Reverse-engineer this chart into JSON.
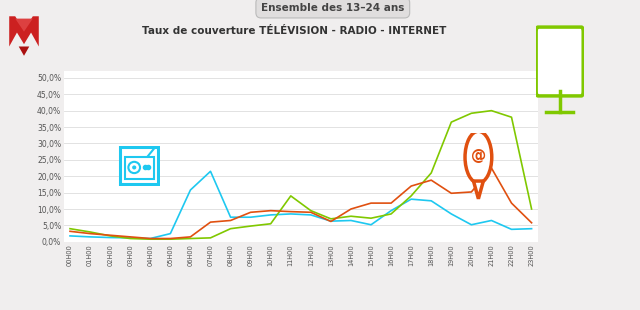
{
  "title": "Taux de couverture TÉLÉVISION - RADIO - INTERNET",
  "subtitle": "Ensemble des 13–24 ans",
  "background_color": "#f0eeee",
  "plot_bg_color": "#ffffff",
  "ylim": [
    0,
    0.52
  ],
  "yticks": [
    0.0,
    0.05,
    0.1,
    0.15,
    0.2,
    0.25,
    0.3,
    0.35,
    0.4,
    0.45,
    0.5
  ],
  "ytick_labels": [
    "0,0%",
    "5,0%",
    "10,0%",
    "15,0%",
    "20,0%",
    "25,0%",
    "30,0%",
    "35,0%",
    "40,0%",
    "45,0%",
    "50,0%"
  ],
  "xtick_labels": [
    "00H00",
    "01H00",
    "02H00",
    "03H00",
    "04H00",
    "05H00",
    "06H00",
    "07H00",
    "08H00",
    "09H00",
    "10H00",
    "11H00",
    "12H00",
    "13H00",
    "14H00",
    "15H00",
    "16H00",
    "17H00",
    "18H00",
    "19H00",
    "20H00",
    "21H00",
    "22H00",
    "23H00"
  ],
  "radio_color": "#1ec8f0",
  "television_color": "#80c800",
  "internet_color": "#e05010",
  "radio": [
    0.018,
    0.015,
    0.013,
    0.012,
    0.01,
    0.025,
    0.158,
    0.215,
    0.075,
    0.075,
    0.082,
    0.085,
    0.082,
    0.063,
    0.065,
    0.052,
    0.095,
    0.13,
    0.125,
    0.085,
    0.052,
    0.065,
    0.038,
    0.04
  ],
  "television": [
    0.04,
    0.03,
    0.018,
    0.01,
    0.008,
    0.008,
    0.01,
    0.012,
    0.04,
    0.048,
    0.055,
    0.14,
    0.095,
    0.07,
    0.078,
    0.072,
    0.085,
    0.14,
    0.21,
    0.365,
    0.392,
    0.4,
    0.38,
    0.1
  ],
  "internet": [
    0.032,
    0.025,
    0.02,
    0.015,
    0.01,
    0.01,
    0.015,
    0.06,
    0.065,
    0.09,
    0.095,
    0.092,
    0.09,
    0.062,
    0.1,
    0.118,
    0.118,
    0.17,
    0.188,
    0.148,
    0.152,
    0.225,
    0.118,
    0.058
  ]
}
